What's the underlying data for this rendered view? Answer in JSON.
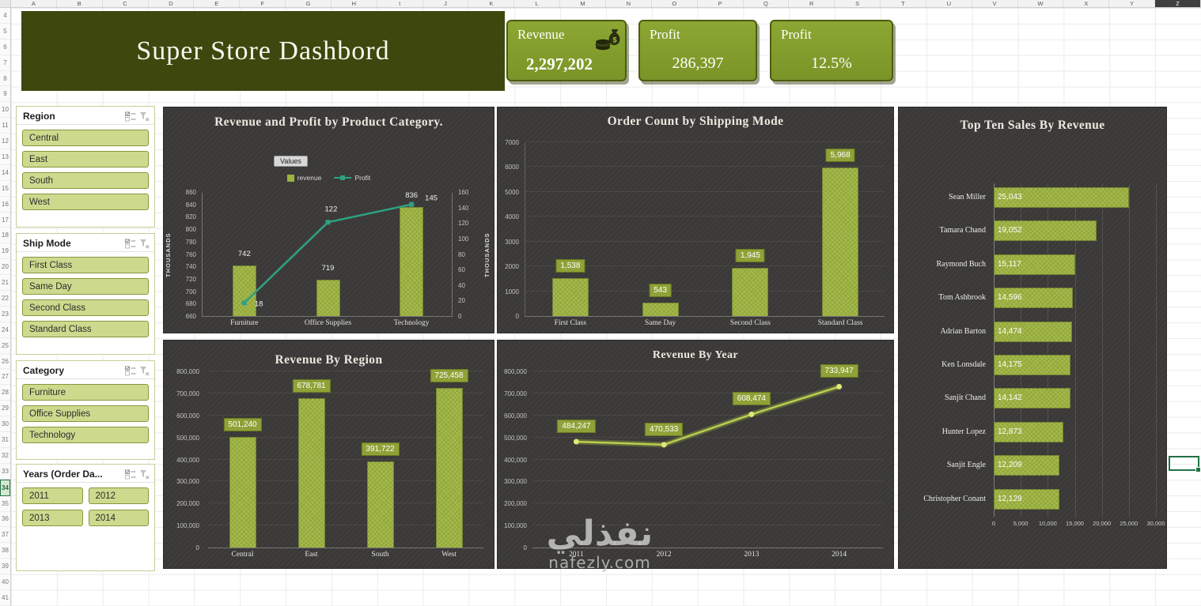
{
  "colors": {
    "bar": "#9cb23f",
    "line_profit": "#2fa083",
    "line_year": "#b9cf4d",
    "chip": "#8fa238",
    "header_banner": "#3e470e",
    "kpi_card": "#84a02c",
    "panel_bg": "#3a3937",
    "selection_green": "#217346"
  },
  "excel": {
    "columns": [
      "A",
      "B",
      "C",
      "D",
      "E",
      "F",
      "G",
      "H",
      "I",
      "J",
      "K",
      "L",
      "M",
      "N",
      "O",
      "P",
      "Q",
      "R",
      "S",
      "T",
      "U",
      "V",
      "W",
      "X",
      "Y",
      "Z"
    ],
    "selected_column": "Z",
    "rows": [
      "4",
      "5",
      "6",
      "7",
      "8",
      "9",
      "10",
      "11",
      "12",
      "13",
      "14",
      "15",
      "16",
      "17",
      "18",
      "19",
      "20",
      "21",
      "22",
      "23",
      "24",
      "25",
      "26",
      "27",
      "28",
      "29",
      "30",
      "31",
      "32",
      "33",
      "34",
      "35",
      "36",
      "37",
      "38",
      "39",
      "40",
      "41"
    ],
    "active_row": "34"
  },
  "header": {
    "title": "Super Store Dashbord"
  },
  "kpis": [
    {
      "label": "Revenue",
      "value": "2,297,202",
      "icon": "money-bag"
    },
    {
      "label": "Profit",
      "value": "286,397"
    },
    {
      "label": "Profit",
      "value": "12.5%"
    }
  ],
  "slicers": [
    {
      "title": "Region",
      "layout": "list",
      "items": [
        "Central",
        "East",
        "South",
        "West"
      ]
    },
    {
      "title": "Ship Mode",
      "layout": "list",
      "items": [
        "First Class",
        "Same Day",
        "Second Class",
        "Standard Class"
      ]
    },
    {
      "title": "Category",
      "layout": "list",
      "items": [
        "Furniture",
        "Office Supplies",
        "Technology"
      ]
    },
    {
      "title": "Years (Order Da...",
      "layout": "grid",
      "items": [
        "2011",
        "2012",
        "2013",
        "2014"
      ]
    }
  ],
  "chart_data": [
    {
      "id": "revenue-profit-by-category",
      "type": "combo",
      "title": "Revenue and Profit by Product Category.",
      "field_button": "Values",
      "categories": [
        "Furniture",
        "Office Supplies",
        "Technology"
      ],
      "series": [
        {
          "name": "revenue",
          "type": "bar",
          "axis": "left",
          "values": [
            742,
            719,
            836
          ]
        },
        {
          "name": "Profit",
          "type": "line",
          "axis": "right",
          "values": [
            18,
            122,
            145
          ]
        }
      ],
      "left_axis": {
        "label": "THOUSANDS",
        "min": 660,
        "max": 860,
        "step": 20
      },
      "right_axis": {
        "label": "THOUSANDS",
        "min": 0,
        "max": 160,
        "step": 20
      },
      "legend_position": "top"
    },
    {
      "id": "order-count-by-shipping-mode",
      "type": "bar",
      "title": "Order Count by Shipping Mode",
      "categories": [
        "First Class",
        "Same Day",
        "Second Class",
        "Standard Class"
      ],
      "values": [
        1538,
        543,
        1945,
        5968
      ],
      "labels": [
        "1,538",
        "543",
        "1,945",
        "5,968"
      ],
      "ylim": [
        0,
        7000
      ],
      "ystep": 1000,
      "grid": true
    },
    {
      "id": "revenue-by-region",
      "type": "bar",
      "title": "Revenue By Region",
      "categories": [
        "Central",
        "East",
        "South",
        "West"
      ],
      "values": [
        501240,
        678781,
        391722,
        725458
      ],
      "labels": [
        "501,240",
        "678,781",
        "391,722",
        "725,458"
      ],
      "ylim": [
        0,
        800000
      ],
      "ystep": 100000,
      "grid": true
    },
    {
      "id": "revenue-by-year",
      "type": "line",
      "title": "Revenue By Year",
      "categories": [
        "2011",
        "2012",
        "2013",
        "2014"
      ],
      "values": [
        484247,
        470533,
        608474,
        733947
      ],
      "labels": [
        "484,247",
        "470,533",
        "608,474",
        "733,947"
      ],
      "ylim": [
        0,
        800000
      ],
      "ystep": 100000,
      "grid": true
    },
    {
      "id": "top-ten-sales-by-revenue",
      "type": "bar-horizontal",
      "title": "Top Ten Sales By  Revenue",
      "categories": [
        "Sean Miller",
        "Tamara Chand",
        "Raymond Buch",
        "Tom Ashbrook",
        "Adrian Barton",
        "Ken Lonsdale",
        "Sanjit Chand",
        "Hunter Lopez",
        "Sanjit Engle",
        "Christopher Conant"
      ],
      "values": [
        25043,
        19052,
        15117,
        14596,
        14474,
        14175,
        14142,
        12873,
        12209,
        12129
      ],
      "labels": [
        "25,043",
        "19,052",
        "15,117",
        "14,596",
        "14,474",
        "14,175",
        "14,142",
        "12,873",
        "12,209",
        "12,129"
      ],
      "xlim": [
        0,
        30000
      ],
      "xstep": 5000,
      "grid": true
    }
  ],
  "watermark": {
    "text": "نفذلي",
    "domain": "nafezly.com"
  }
}
